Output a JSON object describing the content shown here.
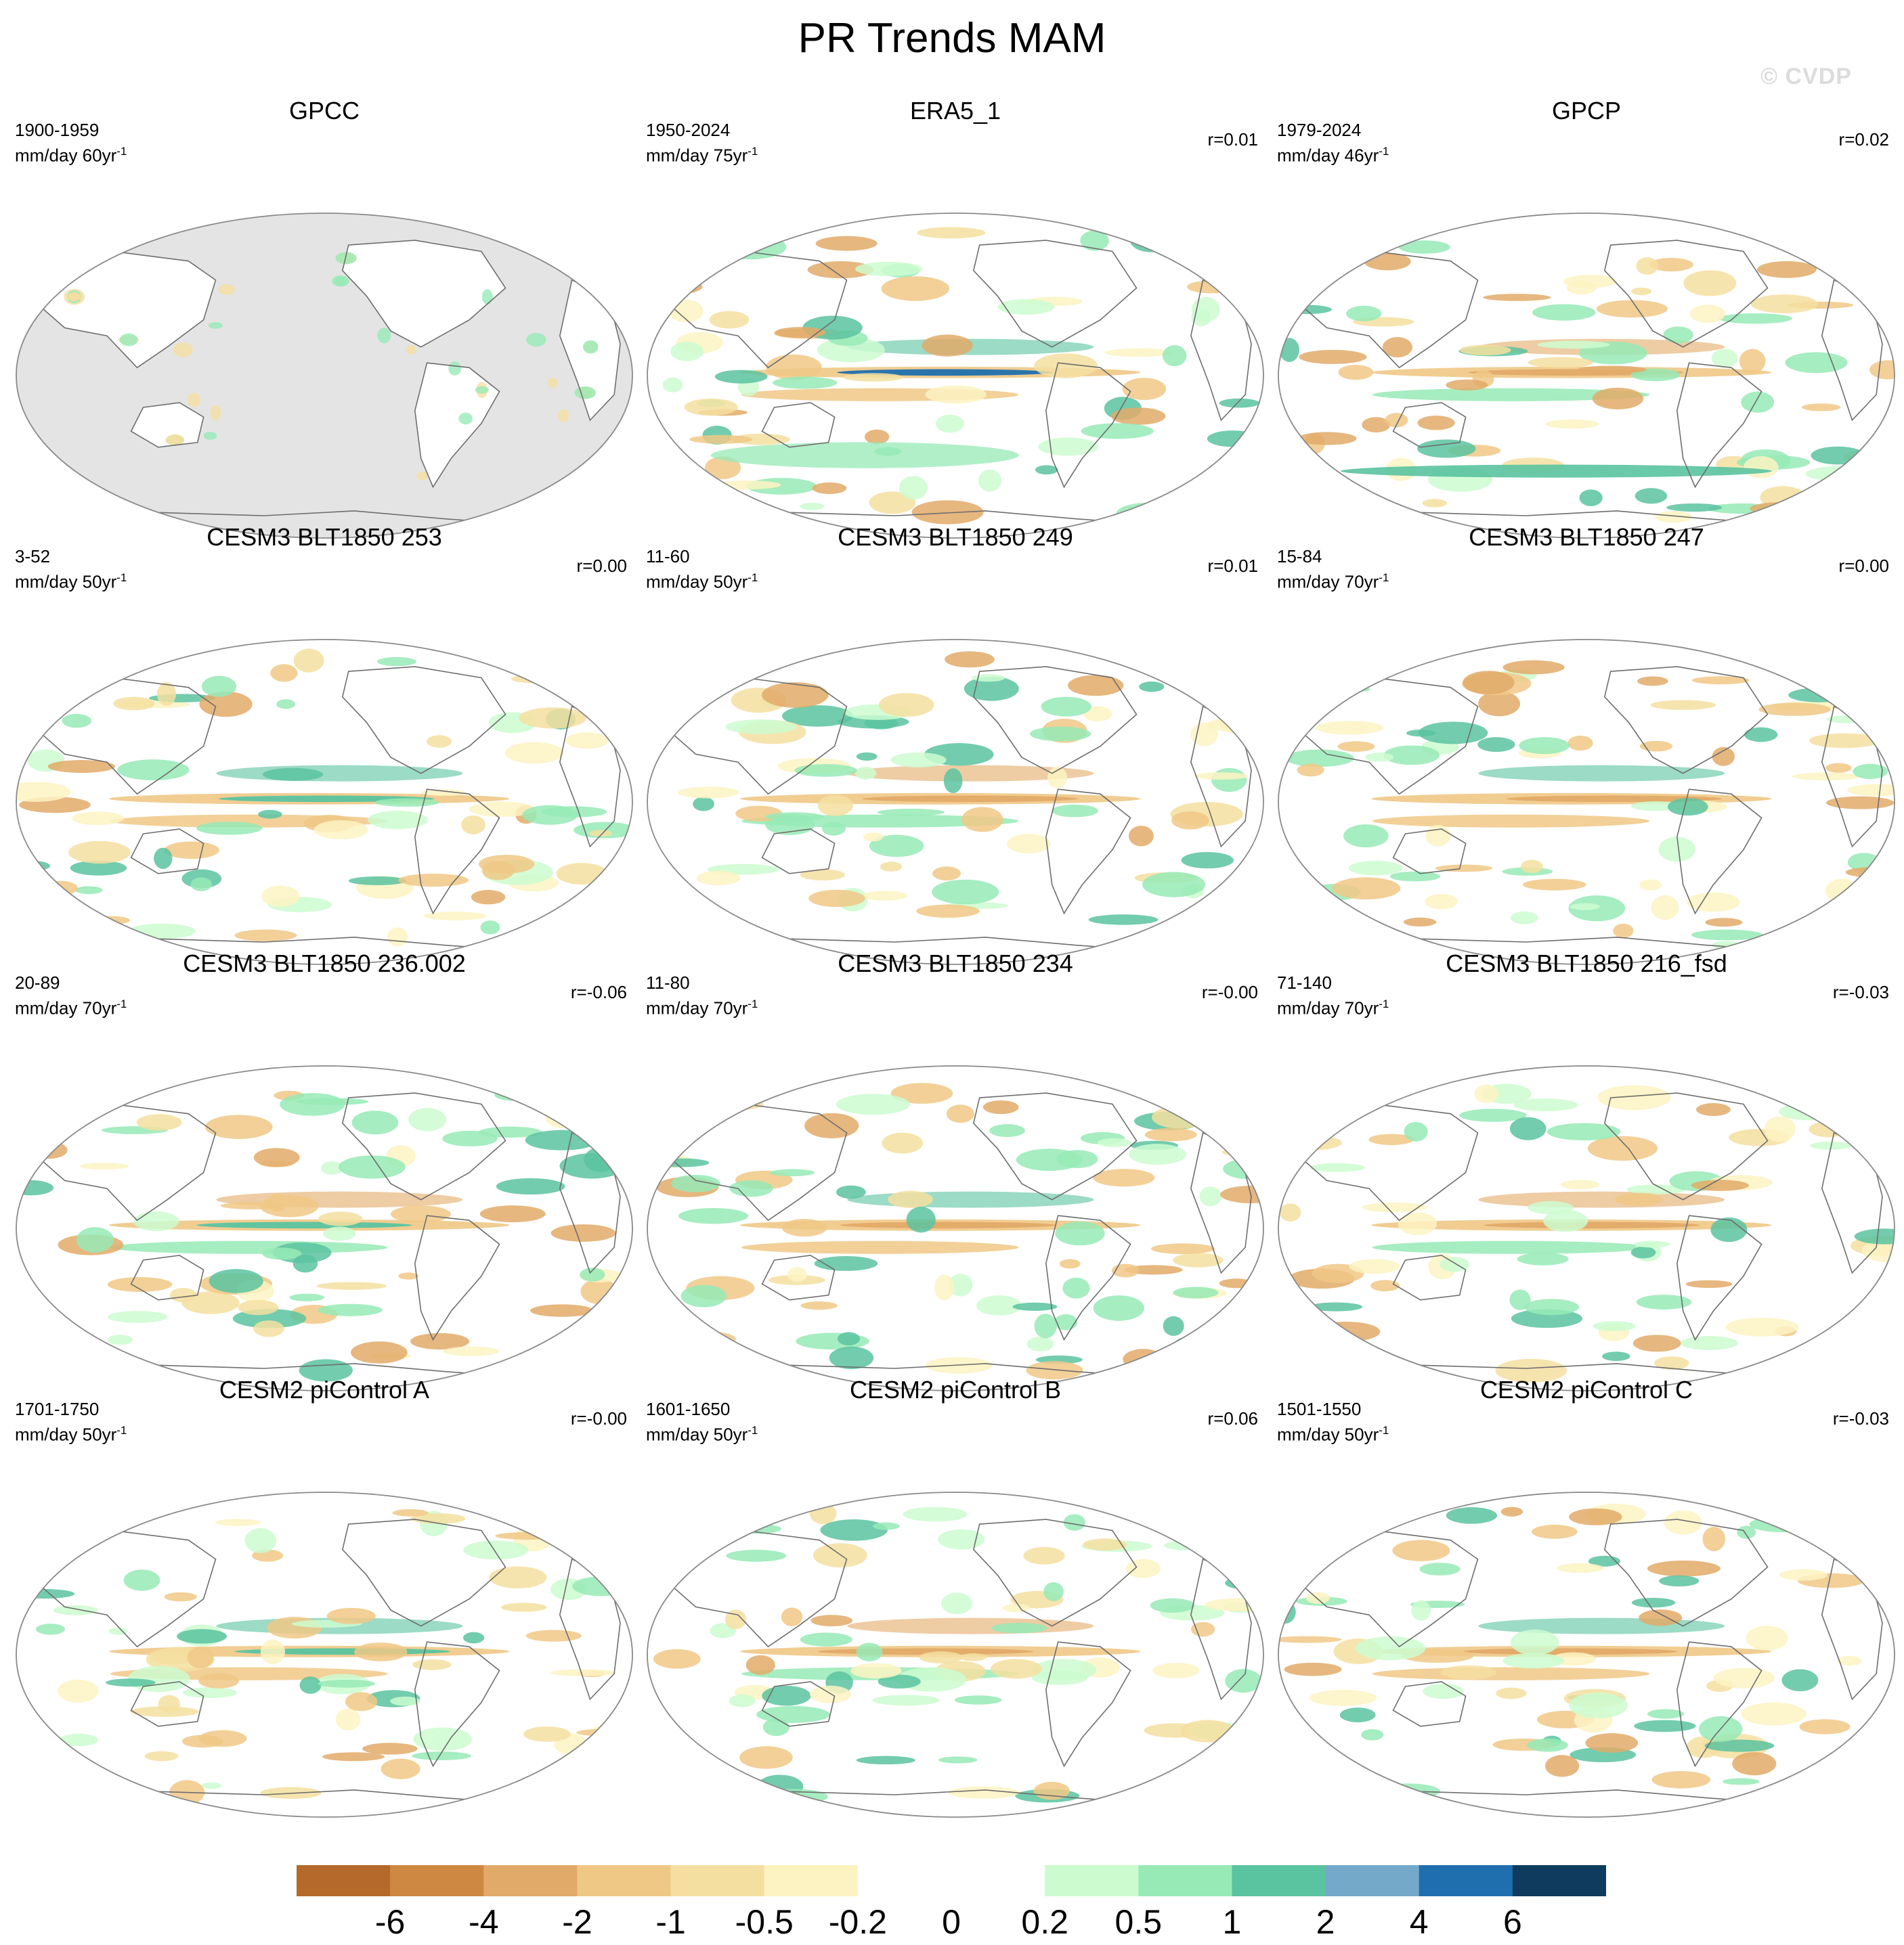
{
  "title": "PR Trends MAM",
  "watermark": "© CVDP",
  "colors": {
    "land_missing": "#e4e4e4",
    "coast": "#6e6e6e",
    "frame": "#8a8a8a"
  },
  "panels": [
    {
      "title": "GPCC",
      "period": "1900-1959",
      "units": "mm/day 60yr",
      "correlation": "",
      "masked": true
    },
    {
      "title": "ERA5_1",
      "period": "1950-2024",
      "units": "mm/day 75yr",
      "correlation": "r=0.01",
      "masked": false
    },
    {
      "title": "GPCP",
      "period": "1979-2024",
      "units": "mm/day 46yr",
      "correlation": "r=0.02",
      "masked": false
    },
    {
      "title": "CESM3 BLT1850 253",
      "period": "3-52",
      "units": "mm/day 50yr",
      "correlation": "r=0.00",
      "masked": false
    },
    {
      "title": "CESM3 BLT1850 249",
      "period": "11-60",
      "units": "mm/day 50yr",
      "correlation": "r=0.01",
      "masked": false
    },
    {
      "title": "CESM3 BLT1850 247",
      "period": "15-84",
      "units": "mm/day 70yr",
      "correlation": "r=0.00",
      "masked": false
    },
    {
      "title": "CESM3 BLT1850 236.002",
      "period": "20-89",
      "units": "mm/day 70yr",
      "correlation": "r=-0.06",
      "masked": false
    },
    {
      "title": "CESM3 BLT1850 234",
      "period": "11-80",
      "units": "mm/day 70yr",
      "correlation": "r=-0.00",
      "masked": false
    },
    {
      "title": "CESM3 BLT1850 216_fsd",
      "period": "71-140",
      "units": "mm/day 70yr",
      "correlation": "r=-0.03",
      "masked": false
    },
    {
      "title": "CESM2 piControl A",
      "period": "1701-1750",
      "units": "mm/day 50yr",
      "correlation": "r=-0.00",
      "masked": false
    },
    {
      "title": "CESM2 piControl B",
      "period": "1601-1650",
      "units": "mm/day 50yr",
      "correlation": "r=0.06",
      "masked": false
    },
    {
      "title": "CESM2 piControl C",
      "period": "1501-1550",
      "units": "mm/day 50yr",
      "correlation": "r=-0.03",
      "masked": false
    }
  ],
  "units_superscript": "-1",
  "colorbar": {
    "colors": [
      "#b5692a",
      "#cf8842",
      "#e2aa68",
      "#f0c886",
      "#f5dfa0",
      "#fdf3c2",
      "#ffffff",
      "#ffffff",
      "#cdfbd0",
      "#97eab6",
      "#5ac3a0",
      "#74a9c9",
      "#1f6fae",
      "#0e3b5e"
    ],
    "labels": [
      "-6",
      "-4",
      "-2",
      "-1",
      "-0.5",
      "-0.2",
      "0",
      "0.2",
      "0.5",
      "1",
      "2",
      "4",
      "6"
    ]
  }
}
